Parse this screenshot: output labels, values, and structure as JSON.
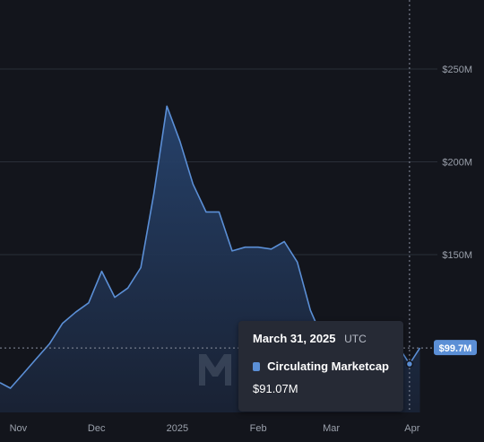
{
  "chart_data": {
    "type": "area",
    "x_dates": [
      "2024-10-25",
      "2024-10-29",
      "2024-11-03",
      "2024-11-08",
      "2024-11-13",
      "2024-11-18",
      "2024-11-23",
      "2024-11-28",
      "2024-12-03",
      "2024-12-08",
      "2024-12-13",
      "2024-12-18",
      "2024-12-23",
      "2024-12-28",
      "2025-01-02",
      "2025-01-07",
      "2025-01-12",
      "2025-01-17",
      "2025-01-22",
      "2025-01-27",
      "2025-02-01",
      "2025-02-06",
      "2025-02-11",
      "2025-02-16",
      "2025-02-21",
      "2025-02-26",
      "2025-03-03",
      "2025-03-08",
      "2025-03-13",
      "2025-03-18",
      "2025-03-23",
      "2025-03-27",
      "2025-03-31",
      "2025-04-04"
    ],
    "series": [
      {
        "name": "Circulating Marketcap",
        "values": [
          81,
          78,
          86,
          94,
          102,
          113,
          119,
          124,
          141,
          127,
          132,
          143,
          183,
          230,
          211,
          188,
          173,
          173,
          152,
          154,
          154,
          153,
          157,
          146,
          120,
          104,
          93,
          95,
          96,
          98,
          101,
          100,
          91.07,
          99.7
        ],
        "color": "#5b8fd6"
      }
    ],
    "y_ticks": [
      "$250M",
      "$200M",
      "$150M"
    ],
    "x_ticks": [
      "Nov",
      "Dec",
      "2025",
      "Feb",
      "Mar",
      "Apr"
    ],
    "current_value_label": "$99.7M",
    "colors": {
      "background": "#13151c",
      "line": "#5b8fd6",
      "grid": "#2a2e39",
      "tick_text": "#9aa0ab",
      "tooltip_bg": "#262a35"
    },
    "grid": true,
    "legend": "none"
  },
  "tooltip": {
    "date": "March 31, 2025",
    "tz": "UTC",
    "series_name": "Circulating Marketcap",
    "value": "$91.07M",
    "swatch_color": "#5b8fd6"
  },
  "watermark_icon": "m-logo-icon"
}
